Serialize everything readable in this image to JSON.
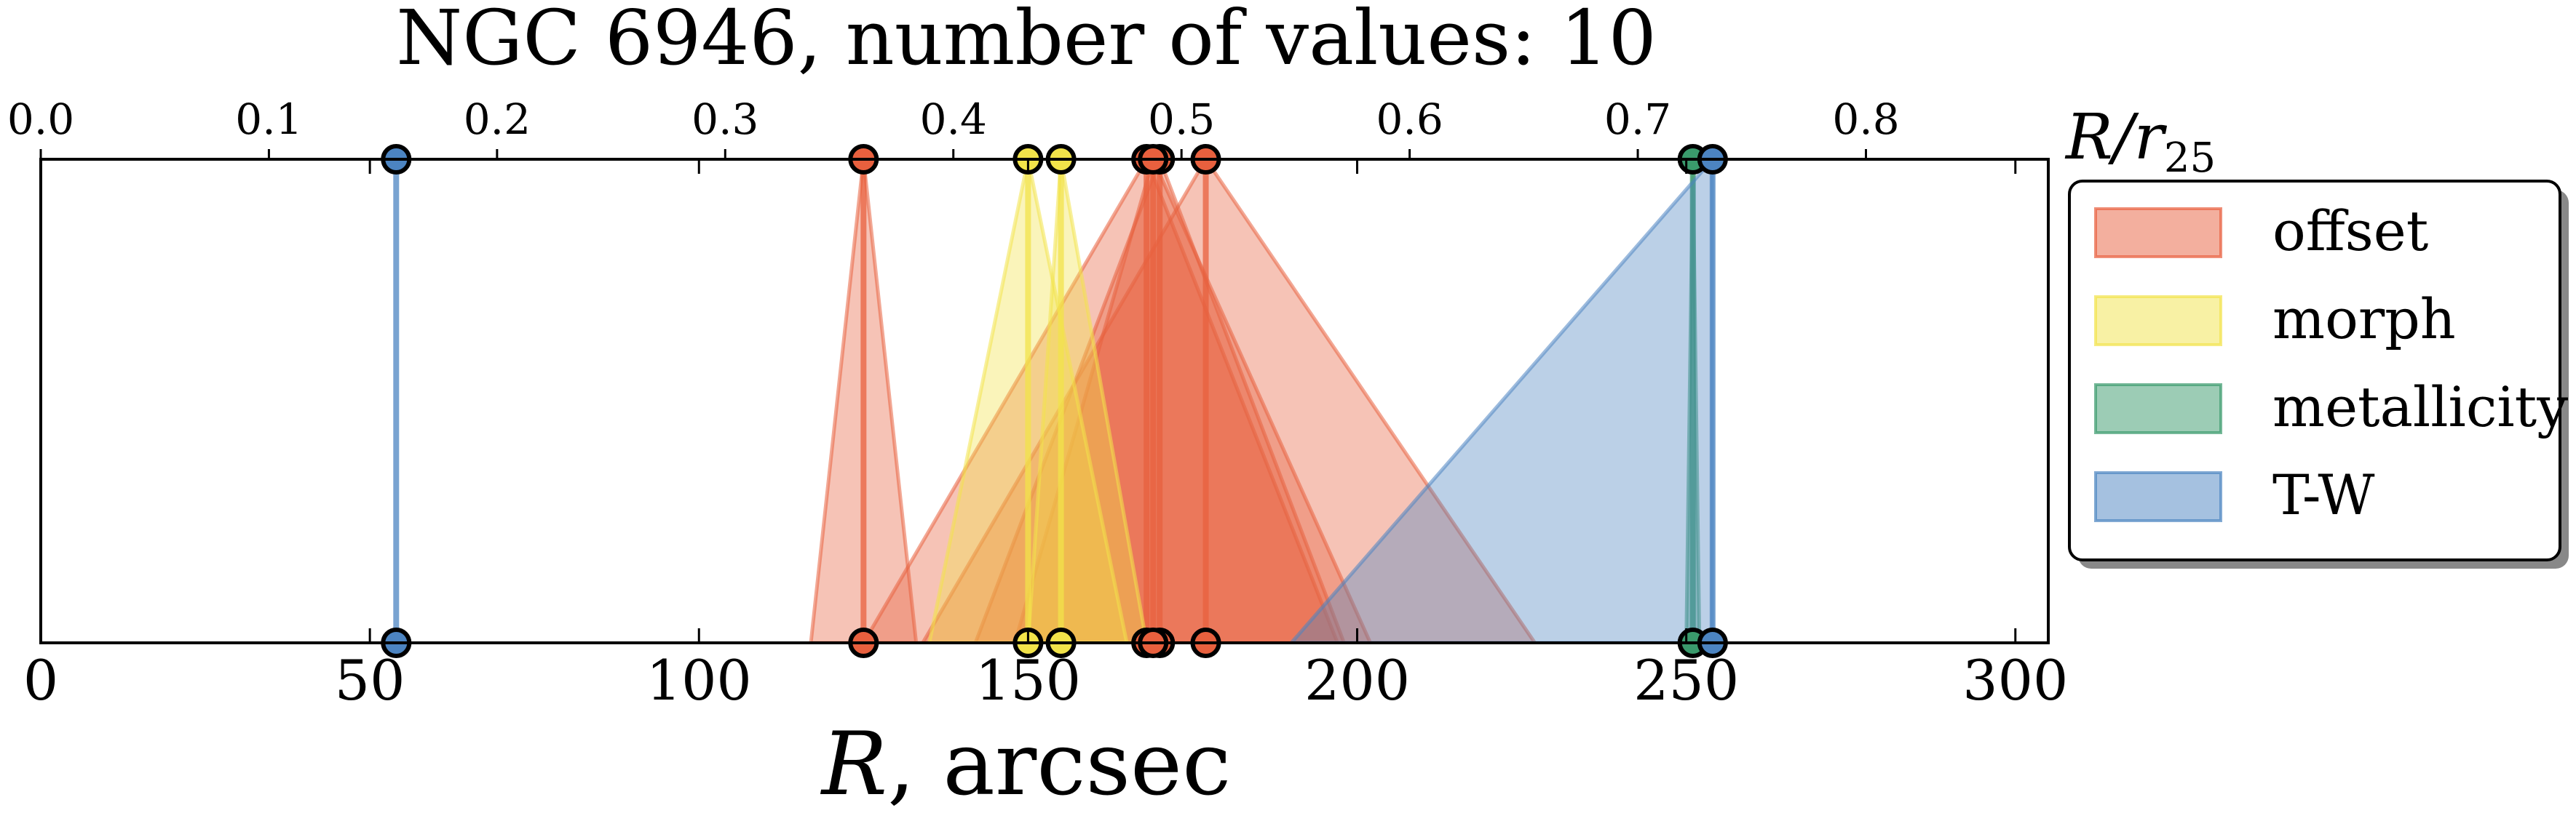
{
  "chart_data": {
    "type": "scatter",
    "title": "NGC 6946, number of values: 10",
    "xlabel": "R, arcsec",
    "xlabel_math": "R",
    "xlabel_unit": ", arcsec",
    "xlim": [
      0,
      305
    ],
    "xticks": [
      0,
      50,
      100,
      150,
      200,
      250,
      300
    ],
    "secondary_axis": {
      "label": "R/r25",
      "label_math": "R/r",
      "label_sub": "25",
      "ticks": [
        0.0,
        0.1,
        0.2,
        0.3,
        0.4,
        0.5,
        0.6,
        0.7,
        0.8
      ],
      "tick_labels": [
        "0.0",
        "0.1",
        "0.2",
        "0.3",
        "0.4",
        "0.5",
        "0.6",
        "0.7",
        "0.8"
      ],
      "scale_factor": 0.002885
    },
    "grid": false,
    "legend_position": "right",
    "series": [
      {
        "name": "offset",
        "color": "#e8603e",
        "values": [
          {
            "x": 125,
            "lo": 117,
            "hi": 133
          },
          {
            "x": 168,
            "lo": 125,
            "hi": 197
          },
          {
            "x": 170,
            "lo": 142,
            "hi": 198
          },
          {
            "x": 177,
            "lo": 134,
            "hi": 227
          },
          {
            "x": 169,
            "lo": 148,
            "hi": 202
          }
        ]
      },
      {
        "name": "morph",
        "color": "#f2e34a",
        "values": [
          {
            "x": 150,
            "lo": 135,
            "hi": 165
          },
          {
            "x": 155,
            "lo": 150,
            "hi": 168
          }
        ]
      },
      {
        "name": "metallicity",
        "color": "#3a9a6c",
        "values": [
          {
            "x": 251,
            "lo": 250,
            "hi": 252
          }
        ]
      },
      {
        "name": "T-W",
        "color": "#4c84c1",
        "values": [
          {
            "x": 54,
            "lo": 54,
            "hi": 54
          },
          {
            "x": 254,
            "lo": 190,
            "hi": 254
          }
        ]
      }
    ]
  }
}
